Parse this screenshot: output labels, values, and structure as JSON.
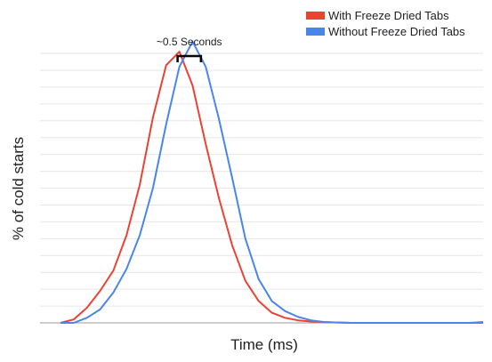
{
  "chart_data": {
    "type": "line",
    "title": "",
    "xlabel": "Time (ms)",
    "ylabel": "% of cold starts",
    "x": [
      0,
      1,
      2,
      3,
      4,
      5,
      6,
      7,
      8,
      9,
      10,
      11,
      12,
      13,
      14,
      15,
      16,
      17,
      18,
      19,
      20,
      21,
      22,
      23,
      24,
      25,
      26,
      27,
      28,
      29,
      30,
      31,
      32
    ],
    "xlim": [
      0,
      32
    ],
    "ylim": [
      0,
      16
    ],
    "grid": true,
    "legend_position": "top-right",
    "colors": {
      "with": "#ea4335",
      "without": "#4a86e8",
      "grid": "#e6e6e6",
      "baseline": "#999999"
    },
    "series": [
      {
        "name": "With Freeze Dried Tabs",
        "color": "#ea4335",
        "values": [
          0.0,
          0.2,
          0.9,
          1.9,
          3.1,
          5.2,
          8.2,
          12.2,
          15.3,
          16.1,
          14.1,
          10.6,
          7.4,
          4.6,
          2.5,
          1.3,
          0.6,
          0.3,
          0.15,
          0.08,
          0.05,
          0.02,
          0.0,
          0.0,
          0.0,
          0.0,
          0.0,
          0.0,
          0.0,
          0.0,
          0.0,
          0.0,
          0.05
        ]
      },
      {
        "name": "Without Freeze Dried Tabs",
        "color": "#4a86e8",
        "values": [
          0.0,
          0.0,
          0.3,
          0.8,
          1.8,
          3.2,
          5.2,
          8.0,
          11.8,
          15.2,
          16.7,
          15.2,
          12.1,
          8.6,
          5.0,
          2.6,
          1.3,
          0.7,
          0.35,
          0.15,
          0.05,
          0.02,
          0.0,
          0.0,
          0.0,
          0.0,
          0.0,
          0.0,
          0.0,
          0.0,
          0.0,
          0.0,
          0.0
        ]
      }
    ],
    "annotations": [
      {
        "text": "~0.5 Seconds",
        "x_from": 9.0,
        "x_to": 10.5
      }
    ]
  }
}
